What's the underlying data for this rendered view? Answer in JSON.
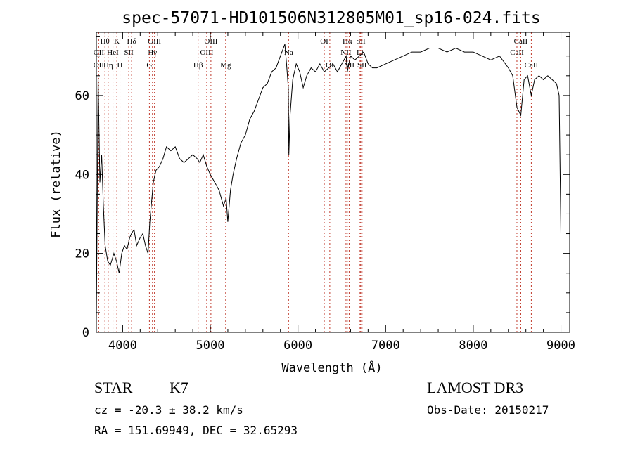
{
  "chart_data": {
    "type": "line",
    "title": "spec-57071-HD101506N312805M01_sp16-024.fits",
    "xlabel": "Wavelength (Å)",
    "ylabel": "Flux (relative)",
    "xlim": [
      3700,
      9100
    ],
    "ylim": [
      0,
      76
    ],
    "x_ticks": [
      4000,
      5000,
      6000,
      7000,
      8000,
      9000
    ],
    "x_tick_labels": [
      "4000",
      "5000",
      "6000",
      "7000",
      "8000",
      "9000"
    ],
    "y_ticks": [
      0,
      20,
      40,
      60
    ],
    "y_tick_labels": [
      "0",
      "20",
      "40",
      "60"
    ],
    "grid": false,
    "series": [
      {
        "x": [
          3700,
          3720,
          3740,
          3760,
          3780,
          3800,
          3830,
          3860,
          3900,
          3930,
          3960,
          3990,
          4020,
          4050,
          4080,
          4100,
          4130,
          4160,
          4200,
          4230,
          4260,
          4290,
          4310,
          4330,
          4350,
          4380,
          4420,
          4460,
          4500,
          4550,
          4600,
          4650,
          4700,
          4750,
          4800,
          4850,
          4880,
          4920,
          4960,
          5000,
          5050,
          5100,
          5150,
          5180,
          5200,
          5230,
          5260,
          5300,
          5350,
          5400,
          5450,
          5500,
          5550,
          5600,
          5650,
          5700,
          5750,
          5800,
          5850,
          5870,
          5890,
          5896,
          5910,
          5940,
          5980,
          6020,
          6060,
          6100,
          6150,
          6200,
          6250,
          6300,
          6350,
          6400,
          6450,
          6500,
          6550,
          6563,
          6600,
          6650,
          6700,
          6750,
          6800,
          6850,
          6900,
          7000,
          7100,
          7200,
          7300,
          7400,
          7500,
          7600,
          7700,
          7800,
          7900,
          8000,
          8100,
          8200,
          8300,
          8400,
          8450,
          8498,
          8542,
          8580,
          8620,
          8662,
          8700,
          8750,
          8800,
          8850,
          8900,
          8950,
          8980,
          9000
        ],
        "y": [
          3,
          65,
          38,
          45,
          32,
          22,
          18,
          17,
          20,
          18,
          15,
          20,
          22,
          21,
          24,
          25,
          26,
          22,
          24,
          25,
          22,
          20,
          28,
          33,
          38,
          41,
          42,
          44,
          47,
          46,
          47,
          44,
          43,
          44,
          45,
          44,
          43,
          45,
          42,
          40,
          38,
          36,
          32,
          34,
          28,
          36,
          40,
          44,
          48,
          50,
          54,
          56,
          59,
          62,
          63,
          66,
          67,
          70,
          73,
          68,
          62,
          45,
          55,
          64,
          68,
          66,
          62,
          65,
          67,
          66,
          68,
          66,
          67,
          68,
          66,
          68,
          70,
          66,
          70,
          69,
          70,
          71,
          68,
          67,
          67,
          68,
          69,
          70,
          71,
          71,
          72,
          72,
          71,
          72,
          71,
          71,
          70,
          69,
          70,
          67,
          65,
          57,
          55,
          64,
          65,
          60,
          64,
          65,
          64,
          65,
          64,
          63,
          60,
          25
        ]
      }
    ],
    "line_markers": [
      {
        "label": "Hθ",
        "x": 3798,
        "row": 1
      },
      {
        "label": "OII",
        "x": 3727,
        "row": 2
      },
      {
        "label": "OII",
        "x": 3727,
        "row": 3
      },
      {
        "label": "K",
        "x": 3934,
        "row": 1
      },
      {
        "label": "HeI",
        "x": 3889,
        "row": 2
      },
      {
        "label": "Hη",
        "x": 3835,
        "row": 3
      },
      {
        "label": "H",
        "x": 3969,
        "row": 3
      },
      {
        "label": "SII",
        "x": 4070,
        "row": 2
      },
      {
        "label": "Hδ",
        "x": 4102,
        "row": 1
      },
      {
        "label": "OIII",
        "x": 4363,
        "row": 1
      },
      {
        "label": "Hγ",
        "x": 4340,
        "row": 2
      },
      {
        "label": "G",
        "x": 4305,
        "row": 3
      },
      {
        "label": "Hβ",
        "x": 4861,
        "row": 3
      },
      {
        "label": "OIII",
        "x": 4959,
        "row": 2
      },
      {
        "label": "OIII",
        "x": 5007,
        "row": 1
      },
      {
        "label": "Mg",
        "x": 5175,
        "row": 3
      },
      {
        "label": "Na",
        "x": 5893,
        "row": 2
      },
      {
        "label": "OI",
        "x": 6300,
        "row": 1
      },
      {
        "label": "OI",
        "x": 6363,
        "row": 3
      },
      {
        "label": "Hα",
        "x": 6563,
        "row": 1
      },
      {
        "label": "NII",
        "x": 6548,
        "row": 2
      },
      {
        "label": "NII",
        "x": 6584,
        "row": 3
      },
      {
        "label": "Li",
        "x": 6708,
        "row": 2
      },
      {
        "label": "SII",
        "x": 6717,
        "row": 1
      },
      {
        "label": "SII",
        "x": 6731,
        "row": 3
      },
      {
        "label": "CaII",
        "x": 8542,
        "row": 1
      },
      {
        "label": "CaII",
        "x": 8498,
        "row": 2
      },
      {
        "label": "CaII",
        "x": 8662,
        "row": 3
      }
    ]
  },
  "info": {
    "object_class": "STAR",
    "subclass": "K7",
    "survey": "LAMOST DR3",
    "cz": "cz = -20.3 ± 38.2 km/s",
    "obs_date": "Obs-Date: 20150217",
    "coords": "RA = 151.69949, DEC =  32.65293"
  }
}
